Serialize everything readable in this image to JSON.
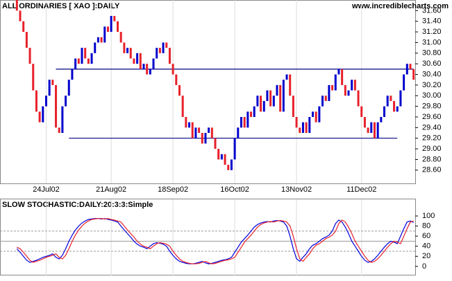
{
  "chart_data": [
    {
      "type": "candlestick",
      "title": "ALL ORDINARIES [ XAO ]:DAILY",
      "subtitle": "www.incrediblecharts.com",
      "open": 31.8,
      "values": [
        31.6,
        31.4,
        31.2,
        30.9,
        30.6,
        30.1,
        29.7,
        29.5,
        29.8,
        30.0,
        30.3,
        30.2,
        29.4,
        29.3,
        29.8,
        30.0,
        30.3,
        30.5,
        30.7,
        30.6,
        30.9,
        30.7,
        30.6,
        30.8,
        31.0,
        31.1,
        31.0,
        31.3,
        31.2,
        31.5,
        31.4,
        31.2,
        31.0,
        30.8,
        30.9,
        30.7,
        30.6,
        30.8,
        30.5,
        30.6,
        30.4,
        30.5,
        30.7,
        30.9,
        30.8,
        31.0,
        30.9,
        30.6,
        30.4,
        30.2,
        30.0,
        29.6,
        29.4,
        29.5,
        29.2,
        29.4,
        29.3,
        29.1,
        29.3,
        29.4,
        29.2,
        29.0,
        28.8,
        28.9,
        28.7,
        28.6,
        28.8,
        29.2,
        29.4,
        29.6,
        29.4,
        29.7,
        29.6,
        29.8,
        30.0,
        29.7,
        29.9,
        30.1,
        29.8,
        30.0,
        30.2,
        29.7,
        30.3,
        30.4,
        30.0,
        29.6,
        29.4,
        29.3,
        29.5,
        29.3,
        29.6,
        29.7,
        29.5,
        29.8,
        30.0,
        29.9,
        30.2,
        30.1,
        30.4,
        30.5,
        30.2,
        30.0,
        30.1,
        30.3,
        30.1,
        29.8,
        29.6,
        29.4,
        29.3,
        29.5,
        29.2,
        29.5,
        29.6,
        29.8,
        30.0,
        29.9,
        29.7,
        29.8,
        30.1,
        30.4,
        30.6,
        30.5,
        30.3
      ],
      "up_color": "#0000cc",
      "down_color": "#e8202a",
      "xlabels": [
        {
          "index": 9,
          "label": "24Jul02"
        },
        {
          "index": 29,
          "label": "21Aug02"
        },
        {
          "index": 48,
          "label": "18Sep02"
        },
        {
          "index": 67,
          "label": "16Oct02"
        },
        {
          "index": 86,
          "label": "13Nov02"
        },
        {
          "index": 106,
          "label": "11Dec02"
        }
      ],
      "ylim": [
        28.35,
        31.8
      ],
      "yticks": [
        {
          "value": 28.6,
          "label": "28.60"
        },
        {
          "value": 28.8,
          "label": "28.80"
        },
        {
          "value": 29.0,
          "label": "29.00"
        },
        {
          "value": 29.2,
          "label": "29.20"
        },
        {
          "value": 29.4,
          "label": "29.40"
        },
        {
          "value": 29.6,
          "label": "29.60"
        },
        {
          "value": 29.8,
          "label": "29.80"
        },
        {
          "value": 30.0,
          "label": "30.00"
        },
        {
          "value": 30.2,
          "label": "30.20"
        },
        {
          "value": 30.4,
          "label": "30.40"
        },
        {
          "value": 30.6,
          "label": "30.60"
        },
        {
          "value": 30.8,
          "label": "30.80"
        },
        {
          "value": 31.0,
          "label": "31.00"
        },
        {
          "value": 31.2,
          "label": "31.20"
        },
        {
          "value": 31.4,
          "label": "31.40"
        },
        {
          "value": 31.6,
          "label": "31.60"
        }
      ],
      "lines": [
        {
          "value": 30.5,
          "from": 12,
          "to": 122
        },
        {
          "value": 29.2,
          "from": 16,
          "to": 117
        }
      ],
      "line_color": "#000080"
    },
    {
      "type": "line",
      "title": "SLOW STOCHASTIC:DAILY:20:3:3:Simple",
      "series": [
        {
          "color": "#0000dd",
          "values": [
            35,
            28,
            20,
            12,
            8,
            10,
            12,
            15,
            18,
            20,
            22,
            25,
            18,
            15,
            22,
            35,
            50,
            62,
            72,
            80,
            86,
            90,
            93,
            94,
            95,
            95,
            94,
            95,
            93,
            92,
            90,
            88,
            80,
            72,
            65,
            58,
            50,
            44,
            40,
            38,
            35,
            40,
            45,
            47,
            46,
            44,
            40,
            30,
            22,
            15,
            10,
            8,
            6,
            5,
            5,
            6,
            8,
            10,
            7,
            5,
            6,
            8,
            10,
            12,
            13,
            15,
            18,
            28,
            38,
            48,
            55,
            62,
            70,
            78,
            83,
            86,
            88,
            89,
            88,
            90,
            91,
            90,
            88,
            80,
            60,
            35,
            15,
            10,
            18,
            25,
            35,
            42,
            45,
            50,
            55,
            58,
            62,
            70,
            85,
            92,
            88,
            78,
            65,
            50,
            40,
            30,
            20,
            12,
            8,
            10,
            15,
            22,
            30,
            38,
            45,
            50,
            48,
            45,
            60,
            75,
            88,
            90,
            87
          ]
        },
        {
          "color": "#e8202a",
          "values": [
            38,
            35,
            28,
            20,
            12,
            8,
            10,
            12,
            15,
            18,
            20,
            22,
            25,
            18,
            15,
            22,
            35,
            50,
            62,
            72,
            80,
            86,
            90,
            93,
            94,
            95,
            95,
            94,
            95,
            93,
            92,
            90,
            88,
            80,
            72,
            65,
            58,
            50,
            44,
            40,
            38,
            35,
            40,
            45,
            47,
            46,
            44,
            40,
            30,
            22,
            15,
            10,
            8,
            6,
            5,
            5,
            6,
            8,
            10,
            7,
            5,
            6,
            8,
            10,
            12,
            13,
            15,
            18,
            28,
            38,
            48,
            55,
            62,
            70,
            78,
            83,
            86,
            88,
            89,
            88,
            90,
            91,
            90,
            88,
            80,
            60,
            35,
            15,
            10,
            18,
            25,
            35,
            42,
            45,
            50,
            55,
            58,
            62,
            70,
            85,
            92,
            88,
            78,
            65,
            50,
            40,
            30,
            20,
            12,
            8,
            10,
            15,
            22,
            30,
            38,
            45,
            50,
            48,
            45,
            60,
            75,
            88,
            90
          ]
        }
      ],
      "ylim": [
        -18,
        133
      ],
      "yticks": [
        0,
        20,
        40,
        60,
        80,
        100
      ],
      "reflines": [
        30,
        50,
        70
      ]
    }
  ]
}
